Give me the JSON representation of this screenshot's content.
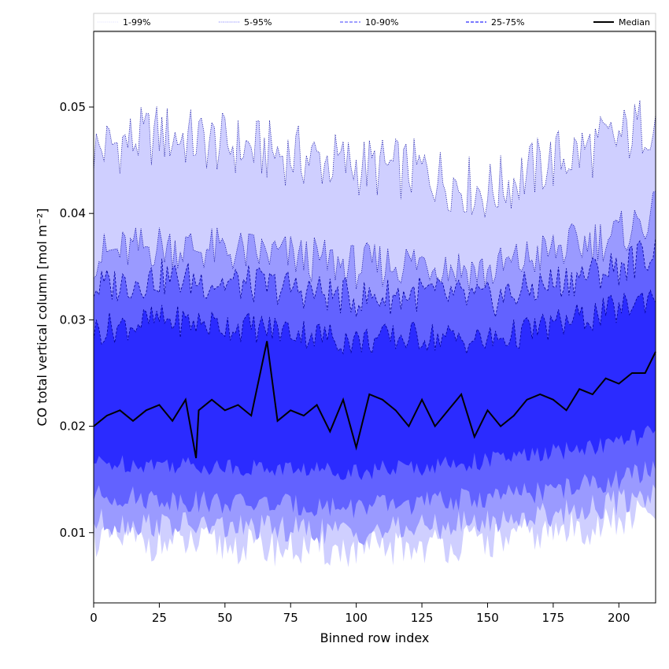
{
  "chart_data": {
    "type": "area",
    "xlabel": "Binned row index",
    "ylabel": "CO total vertical column [mol m⁻²]",
    "xlim": [
      0,
      214
    ],
    "ylim": [
      0.0034,
      0.0571
    ],
    "xticks": [
      0,
      25,
      50,
      75,
      100,
      125,
      150,
      175,
      200
    ],
    "yticks": [
      0.01,
      0.02,
      0.03,
      0.04,
      0.05
    ],
    "legend": {
      "placement": "top",
      "entries": [
        {
          "label": "1-99%",
          "color": "#d2d2ff",
          "style": "dotted-thin"
        },
        {
          "label": "5-95%",
          "color": "#6a6aff",
          "style": "dotted"
        },
        {
          "label": "10-90%",
          "color": "#6666ff",
          "style": "dashed"
        },
        {
          "label": "25-75%",
          "color": "#2a2aff",
          "style": "dashed"
        },
        {
          "label": "Median",
          "color": "#000000",
          "style": "solid"
        }
      ]
    },
    "bands": [
      {
        "name": "1-99%",
        "fill": "#cfcfff",
        "lower_base": 0.0088,
        "upper_base": 0.0455,
        "lower_x": [
          0,
          25,
          50,
          75,
          100,
          125,
          150,
          175,
          200,
          214
        ],
        "lower_y": [
          0.0095,
          0.009,
          0.0088,
          0.0085,
          0.0083,
          0.0087,
          0.0092,
          0.01,
          0.011,
          0.012
        ],
        "upper_x": [
          0,
          25,
          50,
          75,
          100,
          125,
          150,
          175,
          200,
          214
        ],
        "upper_y": [
          0.046,
          0.0475,
          0.0465,
          0.0455,
          0.0445,
          0.044,
          0.042,
          0.045,
          0.047,
          0.049
        ]
      },
      {
        "name": "5-95%",
        "fill": "#9a9aff",
        "lower_x": [
          0,
          25,
          50,
          75,
          100,
          125,
          150,
          175,
          200,
          214
        ],
        "lower_y": [
          0.011,
          0.0108,
          0.0105,
          0.0103,
          0.01,
          0.0105,
          0.011,
          0.0118,
          0.0128,
          0.0138
        ],
        "upper_x": [
          0,
          25,
          50,
          75,
          100,
          125,
          150,
          175,
          200,
          214
        ],
        "upper_y": [
          0.036,
          0.037,
          0.0365,
          0.036,
          0.035,
          0.0355,
          0.0345,
          0.0365,
          0.038,
          0.04
        ]
      },
      {
        "name": "10-90%",
        "fill": "#6262ff",
        "lower_x": [
          0,
          25,
          50,
          75,
          100,
          125,
          150,
          175,
          200,
          214
        ],
        "lower_y": [
          0.0135,
          0.0132,
          0.0128,
          0.0126,
          0.0124,
          0.0128,
          0.0133,
          0.014,
          0.015,
          0.016
        ],
        "upper_x": [
          0,
          25,
          50,
          75,
          100,
          125,
          150,
          175,
          200,
          214
        ],
        "upper_y": [
          0.033,
          0.034,
          0.0335,
          0.033,
          0.032,
          0.0325,
          0.0318,
          0.0335,
          0.035,
          0.0365
        ]
      },
      {
        "name": "25-75%",
        "fill": "#2b2bff",
        "lower_x": [
          0,
          25,
          50,
          75,
          100,
          125,
          150,
          175,
          200,
          214
        ],
        "lower_y": [
          0.0165,
          0.0165,
          0.0162,
          0.016,
          0.0158,
          0.0162,
          0.0168,
          0.0175,
          0.0185,
          0.0195
        ],
        "upper_x": [
          0,
          25,
          50,
          75,
          100,
          125,
          150,
          175,
          200,
          214
        ],
        "upper_y": [
          0.029,
          0.03,
          0.0295,
          0.029,
          0.028,
          0.0285,
          0.028,
          0.0295,
          0.031,
          0.0325
        ]
      }
    ],
    "median": {
      "name": "Median",
      "color": "#000000",
      "x": [
        0,
        5,
        10,
        15,
        20,
        25,
        30,
        35,
        39,
        40,
        45,
        50,
        55,
        60,
        66,
        70,
        75,
        80,
        85,
        90,
        95,
        100,
        105,
        110,
        115,
        120,
        125,
        130,
        135,
        140,
        145,
        150,
        155,
        160,
        165,
        170,
        175,
        180,
        185,
        190,
        195,
        200,
        205,
        210,
        214
      ],
      "y": [
        0.02,
        0.021,
        0.0215,
        0.0205,
        0.0215,
        0.022,
        0.0205,
        0.0225,
        0.017,
        0.0215,
        0.0225,
        0.0215,
        0.022,
        0.021,
        0.028,
        0.0205,
        0.0215,
        0.021,
        0.022,
        0.0195,
        0.0225,
        0.018,
        0.023,
        0.0225,
        0.0215,
        0.02,
        0.0225,
        0.02,
        0.0215,
        0.023,
        0.019,
        0.0215,
        0.02,
        0.021,
        0.0225,
        0.023,
        0.0225,
        0.0215,
        0.0235,
        0.023,
        0.0245,
        0.024,
        0.025,
        0.025,
        0.027
      ]
    }
  }
}
